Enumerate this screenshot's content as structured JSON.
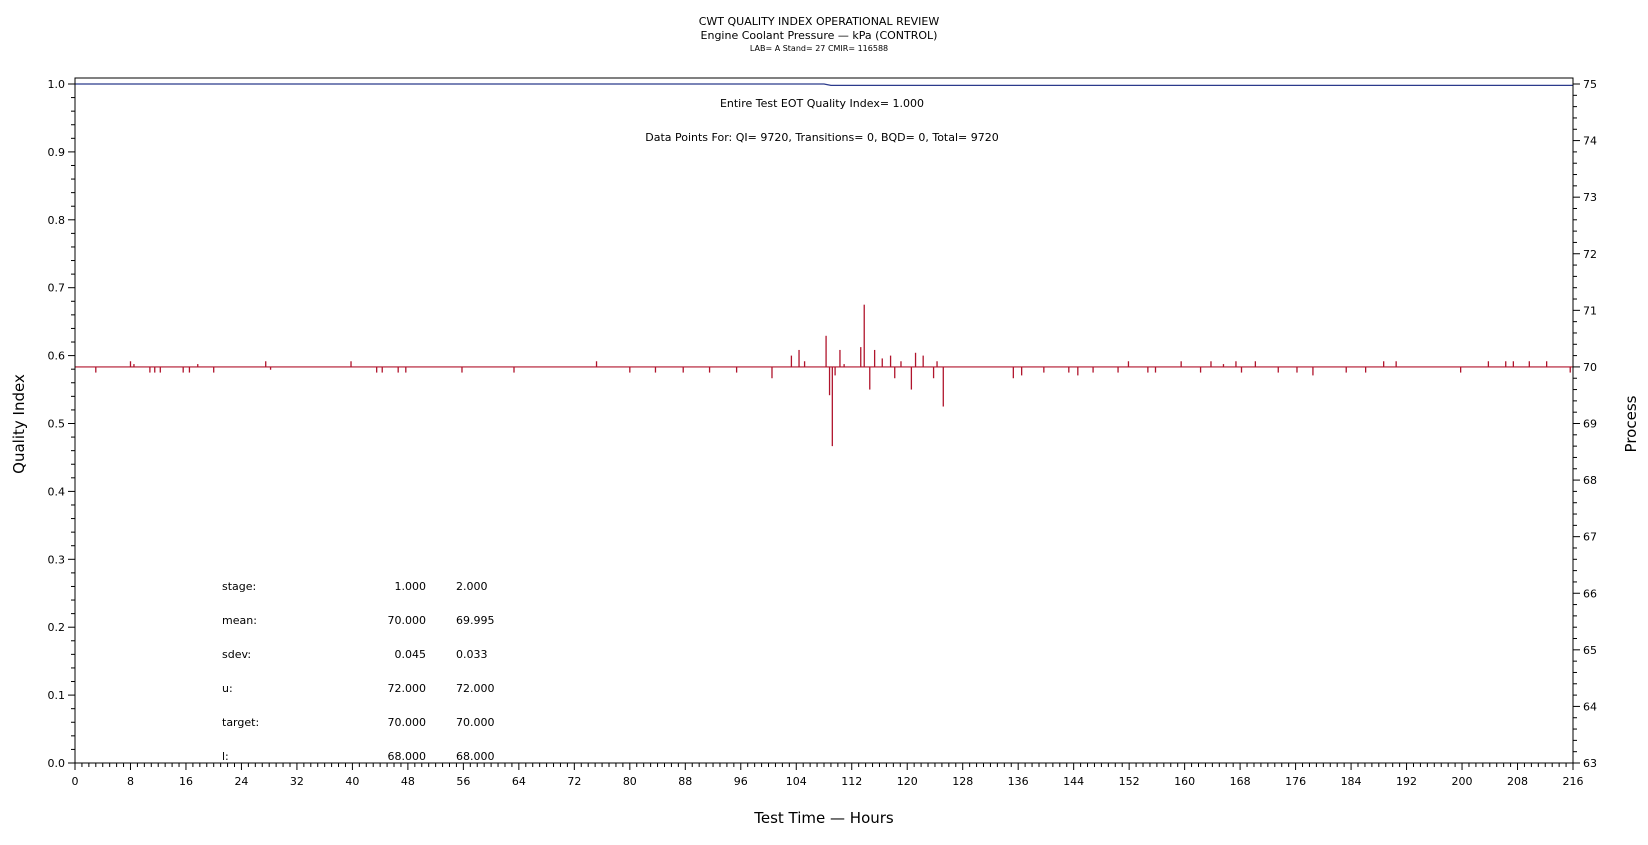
{
  "chart_data": {
    "type": "line",
    "title": "CWT QUALITY INDEX OPERATIONAL REVIEW",
    "subtitle": "Engine Coolant Pressure — kPa (CONTROL)",
    "meta": "LAB= A Stand= 27 CMIR= 116588",
    "xlabel": "Test Time — Hours",
    "ylabel_left": "Quality Index",
    "ylabel_right": "Process",
    "xlim": [
      0,
      216
    ],
    "ylim_left": [
      0.0,
      1.0
    ],
    "ylim_right": [
      63,
      75
    ],
    "x_ticks": [
      0,
      8,
      16,
      24,
      32,
      40,
      48,
      56,
      64,
      72,
      80,
      88,
      96,
      104,
      112,
      120,
      128,
      136,
      144,
      152,
      160,
      168,
      176,
      184,
      192,
      200,
      208,
      216
    ],
    "y_left_ticks": [
      "0.0",
      "0.1",
      "0.2",
      "0.3",
      "0.4",
      "0.5",
      "0.6",
      "0.7",
      "0.8",
      "0.9",
      "1.0"
    ],
    "y_right_ticks": [
      "63",
      "64",
      "65",
      "66",
      "67",
      "68",
      "69",
      "70",
      "71",
      "72",
      "73",
      "74",
      "75"
    ],
    "annotations": {
      "eot": "Entire Test EOT Quality Index=   1.000",
      "points": "Data Points For: QI=  9720, Transitions=     0, BQD=     0, Total=  9720"
    },
    "grid": false,
    "series": [
      {
        "axis": "left",
        "color": "#2b3a8c",
        "x": [
          0,
          108,
          109,
          216
        ],
        "y": [
          1.0,
          1.0,
          0.998,
          0.998
        ]
      },
      {
        "axis": "right",
        "color": "#b0142c",
        "baseline": 70.0,
        "x": [
          3,
          8,
          8.5,
          10.8,
          11.5,
          12.3,
          15.6,
          16.5,
          17.7,
          20,
          27.5,
          28.2,
          39.8,
          43.5,
          44.3,
          46.6,
          47.7,
          55.8,
          63.3,
          75.2,
          80,
          83.7,
          87.7,
          91.5,
          95.4,
          100.5,
          103.3,
          104.4,
          105.2,
          108.3,
          108.8,
          109.2,
          109.6,
          110.3,
          110.9,
          113.3,
          113.8,
          114.6,
          115.3,
          116.4,
          117.6,
          118.2,
          119.1,
          120.6,
          121.2,
          122.3,
          123.8,
          124.3,
          125.2,
          135.3,
          136.5,
          139.7,
          143.3,
          144.6,
          146.8,
          150.4,
          151.9,
          154.7,
          155.8,
          159.5,
          162.3,
          163.8,
          165.6,
          167.4,
          168.2,
          170.2,
          173.5,
          176.2,
          178.5,
          183.3,
          186.1,
          188.7,
          190.5,
          199.8,
          203.8,
          206.3,
          207.4,
          209.7,
          212.2,
          215.6
        ],
        "y": [
          69.9,
          70.1,
          70.05,
          69.9,
          69.9,
          69.9,
          69.9,
          69.9,
          70.05,
          69.9,
          70.1,
          69.95,
          70.1,
          69.9,
          69.9,
          69.9,
          69.9,
          69.9,
          69.9,
          70.1,
          69.9,
          69.9,
          69.9,
          69.9,
          69.9,
          69.8,
          70.2,
          70.3,
          70.1,
          70.55,
          69.5,
          68.6,
          69.85,
          70.3,
          70.05,
          70.35,
          71.1,
          69.6,
          70.3,
          70.15,
          70.2,
          69.8,
          70.1,
          69.6,
          70.25,
          70.2,
          69.8,
          70.1,
          69.3,
          69.8,
          69.85,
          69.9,
          69.9,
          69.85,
          69.9,
          69.9,
          70.1,
          69.9,
          69.9,
          70.1,
          69.9,
          70.1,
          70.05,
          70.1,
          69.9,
          70.1,
          69.9,
          69.9,
          69.85,
          69.9,
          69.9,
          70.1,
          70.1,
          69.9,
          70.1,
          70.1,
          70.1,
          70.1,
          70.1,
          69.9
        ]
      }
    ],
    "stats_table": {
      "labels": [
        "stage:",
        "mean:",
        "sdev:",
        "u:",
        "target:",
        "l:"
      ],
      "col1": [
        "1.000",
        "70.000",
        "0.045",
        "72.000",
        "70.000",
        "68.000"
      ],
      "col2": [
        "2.000",
        "69.995",
        "0.033",
        "72.000",
        "70.000",
        "68.000"
      ]
    }
  }
}
